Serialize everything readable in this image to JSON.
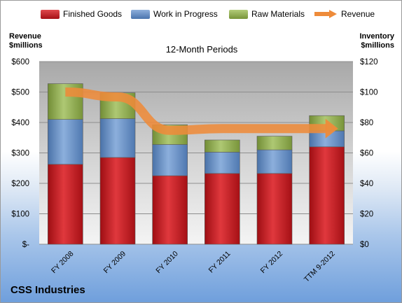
{
  "company": "CSS Industries",
  "legend": {
    "finished": "Finished Goods",
    "wip": "Work in Progress",
    "raw": "Raw Materials",
    "revenue": "Revenue"
  },
  "axis_titles": {
    "left_line1": "Revenue",
    "left_line2": "$millions",
    "right_line1": "Inventory",
    "right_line2": "$millions"
  },
  "chart_data": {
    "type": "bar",
    "title": "12-Month Periods",
    "categories": [
      "FY 2008",
      "FY 2009",
      "FY 2010",
      "FY 2011",
      "FY 2012",
      "TTM 9-2012"
    ],
    "series": [
      {
        "name": "Finished Goods",
        "axis": "right",
        "stacked": true,
        "color": "#c0171c",
        "values": [
          52.5,
          57,
          45,
          46.5,
          46.5,
          64
        ]
      },
      {
        "name": "Work in Progress",
        "axis": "right",
        "stacked": true,
        "color": "#5b83bb",
        "values": [
          29.5,
          25.5,
          20.5,
          14,
          15.5,
          10.5
        ]
      },
      {
        "name": "Raw Materials",
        "axis": "right",
        "stacked": true,
        "color": "#8ca94d",
        "values": [
          23.5,
          17,
          13,
          8,
          9,
          10
        ]
      },
      {
        "name": "Revenue",
        "axis": "left",
        "type": "line",
        "color": "#ee8b3a",
        "values": [
          500,
          484,
          374,
          380,
          380,
          380
        ]
      }
    ],
    "left_axis": {
      "min": 0,
      "max": 600,
      "ticks": [
        "$-",
        "$100",
        "$200",
        "$300",
        "$400",
        "$500",
        "$600"
      ]
    },
    "right_axis": {
      "min": 0,
      "max": 120,
      "ticks": [
        "$0",
        "$20",
        "$40",
        "$60",
        "$80",
        "$100",
        "$120"
      ]
    },
    "grid": true,
    "legend_position": "top"
  }
}
